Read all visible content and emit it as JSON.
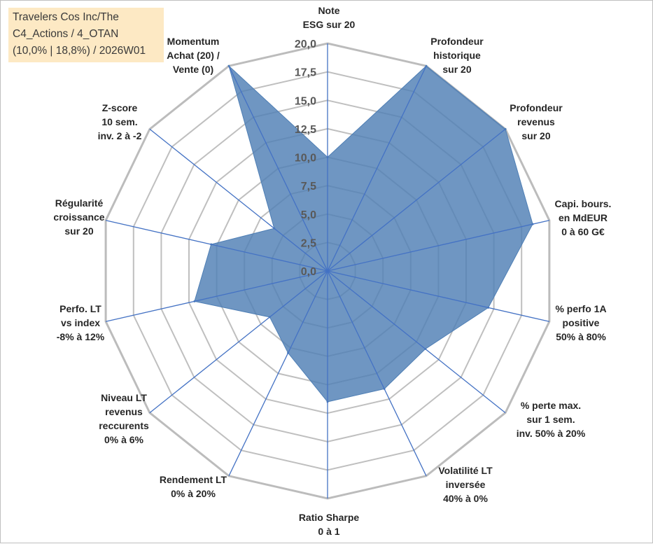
{
  "title": {
    "line1": "Travelers Cos Inc/The",
    "line2": "C4_Actions / 4_OTAN",
    "line3": "(10,0% | 18,8%) / 2026W01"
  },
  "colors": {
    "fill": "#4f7fb5",
    "spoke": "#4472c4",
    "grid": "#bfbfbf",
    "outer_grid": "#bcbcbc",
    "title_bg": "#fde9c4"
  },
  "chart_data": {
    "type": "radar",
    "rmin": 0,
    "rmax": 20,
    "ticks": [
      "0,0",
      "2,5",
      "5,0",
      "7,5",
      "10,0",
      "12,5",
      "15,0",
      "17,5",
      "20,0"
    ],
    "axes": [
      {
        "lines": [
          "Note",
          "ESG sur 20"
        ]
      },
      {
        "lines": [
          "Profondeur",
          "historique",
          "sur 20"
        ]
      },
      {
        "lines": [
          "Profondeur",
          "revenus",
          "sur 20"
        ]
      },
      {
        "lines": [
          "Capi. bours.",
          "en MdEUR",
          "0 à 60 G€"
        ]
      },
      {
        "lines": [
          "% perfo 1A",
          "positive",
          "50% à 80%"
        ]
      },
      {
        "lines": [
          "% perte max.",
          "sur 1 sem.",
          "inv. 50% à 20%"
        ]
      },
      {
        "lines": [
          "Volatilité LT",
          "inversée",
          "40% à 0%"
        ]
      },
      {
        "lines": [
          "Ratio Sharpe",
          "0 à 1"
        ]
      },
      {
        "lines": [
          "Rendement LT",
          "0% à 20%"
        ]
      },
      {
        "lines": [
          "Niveau LT",
          "revenus",
          "reccurents",
          "0% à 6%"
        ]
      },
      {
        "lines": [
          "Perfo. LT",
          "vs index",
          "-8% à 12%"
        ]
      },
      {
        "lines": [
          "Régularité",
          "croissance",
          "sur 20"
        ]
      },
      {
        "lines": [
          "Z-score",
          "10 sem.",
          "inv. 2 à -2"
        ]
      },
      {
        "lines": [
          "Momentum",
          "Achat (20) /",
          "Vente (0)"
        ]
      }
    ],
    "values": [
      10.0,
      20.0,
      20.0,
      18.5,
      14.5,
      11.0,
      11.5,
      11.5,
      8.0,
      6.5,
      12.0,
      10.5,
      6.0,
      20.0
    ]
  }
}
